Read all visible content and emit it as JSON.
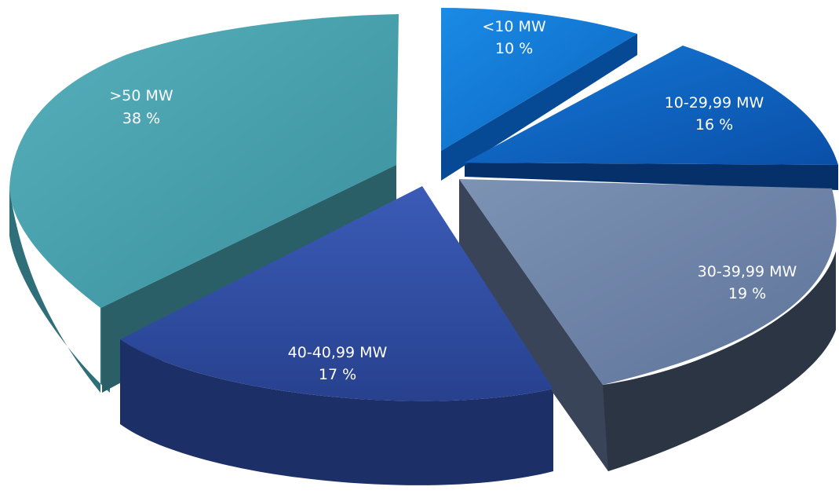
{
  "chart_data": {
    "type": "pie",
    "style": "3d-exploded",
    "unit": "%",
    "slices": [
      {
        "label": "<10 MW",
        "value": 10,
        "display": "10 %",
        "color": "#0b72c9"
      },
      {
        "label": "10-29,99 MW",
        "value": 16,
        "display": "16 %",
        "color": "#0c60c0"
      },
      {
        "label": "30-39,99 MW",
        "value": 19,
        "display": "19 %",
        "color": "#6d84a7"
      },
      {
        "label": "40-40,99 MW",
        "value": 17,
        "display": "17 %",
        "color": "#2d4a9e"
      },
      {
        "label": ">50 MW",
        "value": 38,
        "display": "38 %",
        "color": "#47a0ad"
      }
    ]
  }
}
